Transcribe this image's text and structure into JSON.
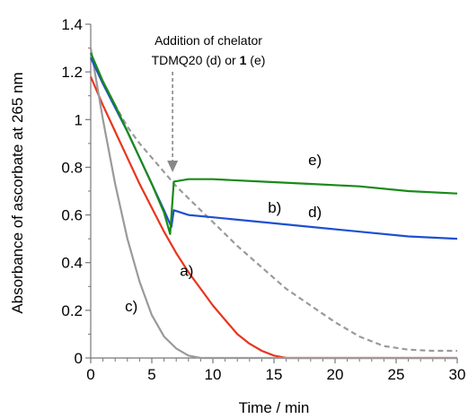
{
  "chart_data": {
    "type": "line",
    "xlabel": "Time / min",
    "ylabel": "Absorbance of ascorbate at 265 nm",
    "xlim": [
      0,
      30
    ],
    "ylim": [
      0,
      1.4
    ],
    "x_ticks": [
      "0",
      "5",
      "10",
      "15",
      "20",
      "25",
      "30"
    ],
    "y_ticks": [
      "0",
      "0.2",
      "0.4",
      "0.6",
      "0.8",
      "1",
      "1.2",
      "1.4"
    ],
    "grid": false,
    "annotation": {
      "line1": "Addition of chelator",
      "line2_prefix": "TDMQ20 (d) or ",
      "line2_bold": "1",
      "line2_suffix": " (e)",
      "arrow_at_x": 6.7
    },
    "series": [
      {
        "label": "a)",
        "color": "#e8351e",
        "style": "solid",
        "points": [
          [
            0,
            1.18
          ],
          [
            1,
            1.06
          ],
          [
            2,
            0.95
          ],
          [
            3,
            0.84
          ],
          [
            4,
            0.73
          ],
          [
            5,
            0.63
          ],
          [
            6,
            0.53
          ],
          [
            7,
            0.44
          ],
          [
            8,
            0.36
          ],
          [
            9,
            0.29
          ],
          [
            10,
            0.22
          ],
          [
            11,
            0.16
          ],
          [
            12,
            0.1
          ],
          [
            13,
            0.06
          ],
          [
            14,
            0.03
          ],
          [
            15,
            0.01
          ],
          [
            16,
            0.0
          ],
          [
            30,
            0.0
          ]
        ]
      },
      {
        "label": "b)",
        "color": "#9a9a9a",
        "style": "dashed",
        "points": [
          [
            0,
            1.27
          ],
          [
            1,
            1.16
          ],
          [
            2,
            1.06
          ],
          [
            3,
            0.97
          ],
          [
            4,
            0.9
          ],
          [
            5,
            0.84
          ],
          [
            6,
            0.78
          ],
          [
            7,
            0.72
          ],
          [
            8,
            0.67
          ],
          [
            9,
            0.62
          ],
          [
            10,
            0.57
          ],
          [
            12,
            0.47
          ],
          [
            14,
            0.38
          ],
          [
            16,
            0.29
          ],
          [
            18,
            0.22
          ],
          [
            20,
            0.15
          ],
          [
            22,
            0.09
          ],
          [
            24,
            0.05
          ],
          [
            26,
            0.035
          ],
          [
            28,
            0.03
          ],
          [
            30,
            0.03
          ]
        ]
      },
      {
        "label": "c)",
        "color": "#9a9a9a",
        "style": "solid",
        "points": [
          [
            0,
            1.3
          ],
          [
            1,
            1.0
          ],
          [
            2,
            0.73
          ],
          [
            3,
            0.5
          ],
          [
            4,
            0.32
          ],
          [
            5,
            0.18
          ],
          [
            6,
            0.09
          ],
          [
            7,
            0.04
          ],
          [
            8,
            0.01
          ],
          [
            9,
            0.0
          ],
          [
            30,
            0.0
          ]
        ]
      },
      {
        "label": "d)",
        "color": "#1f4fd1",
        "style": "solid",
        "points": [
          [
            0,
            1.26
          ],
          [
            1,
            1.15
          ],
          [
            2,
            1.05
          ],
          [
            3,
            0.95
          ],
          [
            4,
            0.84
          ],
          [
            5,
            0.73
          ],
          [
            6,
            0.62
          ],
          [
            6.6,
            0.55
          ],
          [
            6.8,
            0.62
          ],
          [
            8,
            0.6
          ],
          [
            10,
            0.59
          ],
          [
            14,
            0.57
          ],
          [
            18,
            0.55
          ],
          [
            22,
            0.53
          ],
          [
            26,
            0.51
          ],
          [
            30,
            0.5
          ]
        ]
      },
      {
        "label": "e)",
        "color": "#1a8a1a",
        "style": "solid",
        "points": [
          [
            0,
            1.28
          ],
          [
            1,
            1.16
          ],
          [
            2,
            1.06
          ],
          [
            3,
            0.95
          ],
          [
            4,
            0.84
          ],
          [
            5,
            0.73
          ],
          [
            6,
            0.61
          ],
          [
            6.5,
            0.52
          ],
          [
            6.8,
            0.74
          ],
          [
            8,
            0.75
          ],
          [
            10,
            0.75
          ],
          [
            14,
            0.74
          ],
          [
            18,
            0.73
          ],
          [
            22,
            0.72
          ],
          [
            26,
            0.7
          ],
          [
            30,
            0.69
          ]
        ]
      }
    ]
  }
}
